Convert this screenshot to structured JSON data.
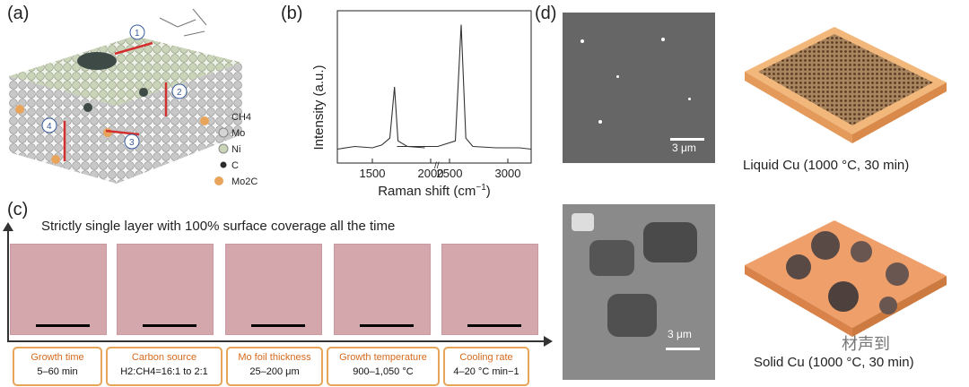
{
  "panels": {
    "a": {
      "label": "(a)",
      "legend": [
        "CH4",
        "Mo",
        "Ni",
        "C",
        "Mo2C"
      ],
      "steps": [
        "1",
        "2",
        "3",
        "4"
      ]
    },
    "b": {
      "label": "(b)",
      "ylabel": "Intensity (a.u.)",
      "xlabel": "Raman shift (cm",
      "xlabel_sup": "−1",
      "xlabel_end": ")"
    },
    "c": {
      "label": "(c)",
      "title": "Strictly single layer with 100% surface coverage all the time",
      "params": [
        {
          "title": "Growth time",
          "value": "5–60 min"
        },
        {
          "title": "Carbon source",
          "value": "H2:CH4=16:1 to 2:1"
        },
        {
          "title": "Mo foil thickness",
          "value": "25–200 μm"
        },
        {
          "title": "Growth temperature",
          "value": "900–1,050 °C"
        },
        {
          "title": "Cooling rate",
          "value": "4–20 °C min−1"
        }
      ]
    },
    "d": {
      "label": "(d)",
      "scale_top": "3 μm",
      "scale_bottom": "3 μm",
      "caption_top": "Liquid Cu (1000 °C, 30 min)",
      "caption_bottom": "Solid Cu (1000 °C, 30 min)"
    }
  },
  "watermark": "材声到",
  "chart_data": {
    "type": "line",
    "title": "",
    "xlabel": "Raman shift (cm−1)",
    "ylabel": "Intensity (a.u.)",
    "tick_labels": [
      "1500",
      "2000",
      "2500",
      "3000"
    ],
    "x": [
      1200,
      1350,
      1500,
      1580,
      1650,
      1690,
      1720,
      1800,
      1950,
      2050,
      2400,
      2550,
      2600,
      2640,
      2700,
      2900,
      3100,
      3200
    ],
    "values": [
      0.1,
      0.12,
      0.11,
      0.13,
      0.18,
      0.55,
      0.16,
      0.12,
      0.11,
      0.12,
      0.12,
      0.16,
      1.0,
      0.18,
      0.12,
      0.11,
      0.11,
      0.1
    ],
    "break_between": [
      2000,
      2400
    ],
    "ylim": [
      0,
      1.1
    ]
  }
}
